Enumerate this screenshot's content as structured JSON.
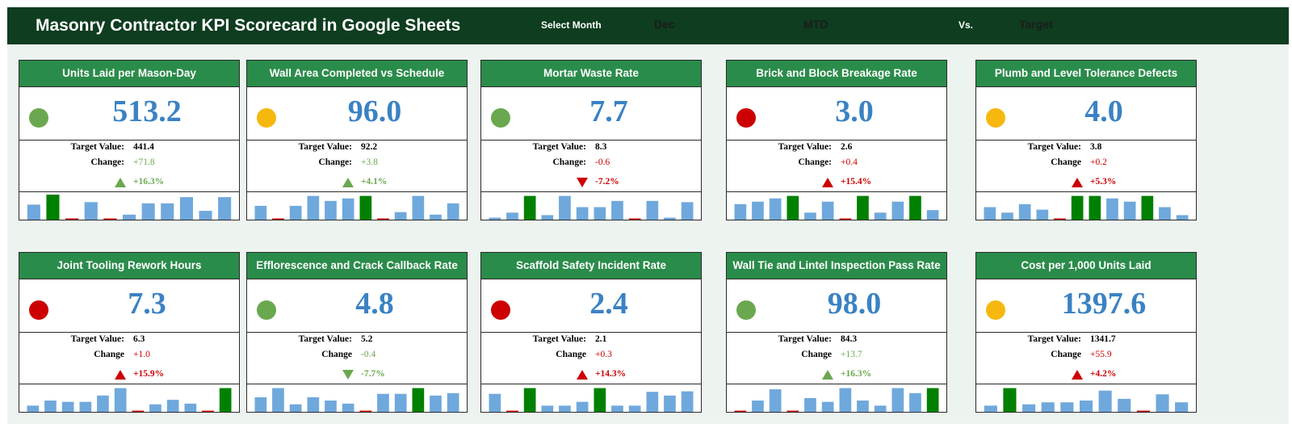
{
  "header": {
    "title": "Masonry Contractor KPI Scorecard in Google Sheets",
    "select_month_label": "Select Month",
    "month_value": "Dec",
    "period_value": "MTD",
    "vs_label": "Vs.",
    "comparison_value": "Target"
  },
  "colors": {
    "header_bg": "#0e3d1f",
    "card_header_bg": "#2a8c4a",
    "value_blue": "#3a82c4",
    "status_green": "#6aa84f",
    "status_amber": "#f6b80f",
    "status_red": "#cc0000",
    "bar_normal": "#6fa8dc",
    "bar_highlight": "#008000",
    "bar_below": "#cc0000",
    "trend_green": "#6aa84f",
    "trend_red": "#cc0000"
  },
  "cards": [
    {
      "title": "Units Laid per Mason-Day",
      "value": "513.2",
      "status": "green",
      "target_label": "Target Value:",
      "target_value": "441.4",
      "change_label": "Change:",
      "change_value": "+71.8",
      "direction": "up",
      "trend_color": "green",
      "percent": "+16.3%",
      "spark": [
        60,
        100,
        5,
        70,
        5,
        20,
        65,
        65,
        90,
        35,
        90
      ],
      "highlight": [
        1
      ]
    },
    {
      "title": "Wall Area Completed vs Schedule",
      "value": "96.0",
      "status": "amber",
      "target_label": "Target Value:",
      "target_value": "92.2",
      "change_label": "Change:",
      "change_value": "+3.8",
      "direction": "up",
      "trend_color": "green",
      "percent": "+4.1%",
      "spark": [
        55,
        5,
        55,
        95,
        75,
        85,
        95,
        5,
        30,
        95,
        20,
        65
      ],
      "highlight": [
        6
      ]
    },
    {
      "title": "Mortar Waste Rate",
      "value": "7.7",
      "status": "green",
      "target_label": "Target Value:",
      "target_value": "8.3",
      "change_label": "Change:",
      "change_value": "-0.6",
      "direction": "down",
      "trend_color": "red",
      "percent": "-7.2%",
      "spark": [
        8,
        28,
        95,
        18,
        95,
        50,
        50,
        75,
        5,
        75,
        8,
        70
      ],
      "highlight": [
        2
      ]
    },
    {
      "title": "Brick and Block Breakage Rate",
      "value": "3.0",
      "status": "red",
      "target_label": "Target Value:",
      "target_value": "2.6",
      "change_label": "Change:",
      "change_value": "+0.4",
      "direction": "up",
      "trend_color": "red",
      "percent": "+15.4%",
      "spark": [
        62,
        72,
        85,
        95,
        28,
        72,
        5,
        95,
        28,
        72,
        95,
        38
      ],
      "highlight": [
        3,
        7,
        10
      ]
    },
    {
      "title": "Plumb and Level Tolerance Defects",
      "value": "4.0",
      "status": "amber",
      "target_label": "Target Value:",
      "target_value": "3.8",
      "change_label": "Change",
      "change_value": "+0.2",
      "direction": "up",
      "trend_color": "red",
      "percent": "+5.3%",
      "spark": [
        50,
        28,
        62,
        40,
        5,
        95,
        95,
        85,
        72,
        95,
        50,
        18
      ],
      "highlight": [
        5,
        6,
        9
      ]
    },
    {
      "title": "Joint Tooling Rework Hours",
      "value": "7.3",
      "status": "red",
      "target_label": "Target Value:",
      "target_value": "6.3",
      "change_label": "Change",
      "change_value": "+1.0",
      "direction": "up",
      "trend_color": "red",
      "percent": "+15.9%",
      "spark": [
        25,
        45,
        40,
        40,
        65,
        95,
        5,
        30,
        48,
        33,
        5,
        95
      ],
      "highlight": [
        11
      ]
    },
    {
      "title": "Efflorescence and Crack Callback Rate",
      "value": "4.8",
      "status": "green",
      "target_label": "Target Value:",
      "target_value": "5.2",
      "change_label": "Change",
      "change_value": "-0.4",
      "direction": "down",
      "trend_color": "green",
      "percent": "-7.7%",
      "spark": [
        58,
        95,
        30,
        58,
        45,
        33,
        5,
        72,
        72,
        95,
        65,
        75
      ],
      "highlight": [
        9
      ]
    },
    {
      "title": "Scaffold Safety Incident Rate",
      "value": "2.4",
      "status": "red",
      "target_label": "Target Value:",
      "target_value": "2.1",
      "change_label": "Change",
      "change_value": "+0.3",
      "direction": "up",
      "trend_color": "red",
      "percent": "+14.3%",
      "spark": [
        72,
        5,
        95,
        25,
        25,
        40,
        95,
        25,
        25,
        80,
        65,
        82
      ],
      "highlight": [
        2,
        6
      ]
    },
    {
      "title": "Wall Tie and Lintel Inspection Pass Rate",
      "value": "98.0",
      "status": "green",
      "target_label": "Target Value:",
      "target_value": "84.3",
      "change_label": "Change",
      "change_value": "+13.7",
      "direction": "up",
      "trend_color": "green",
      "percent": "+16.3%",
      "spark": [
        5,
        45,
        90,
        5,
        55,
        40,
        95,
        45,
        25,
        95,
        75,
        95
      ],
      "highlight": [
        11
      ]
    },
    {
      "title": "Cost per 1,000 Units Laid",
      "value": "1397.6",
      "status": "amber",
      "target_label": "Target Value:",
      "target_value": "1341.7",
      "change_label": "Change",
      "change_value": "+55.9",
      "direction": "up",
      "trend_color": "red",
      "percent": "+4.2%",
      "spark": [
        25,
        95,
        30,
        38,
        38,
        45,
        85,
        52,
        5,
        70,
        38
      ],
      "highlight": [
        1
      ]
    }
  ]
}
